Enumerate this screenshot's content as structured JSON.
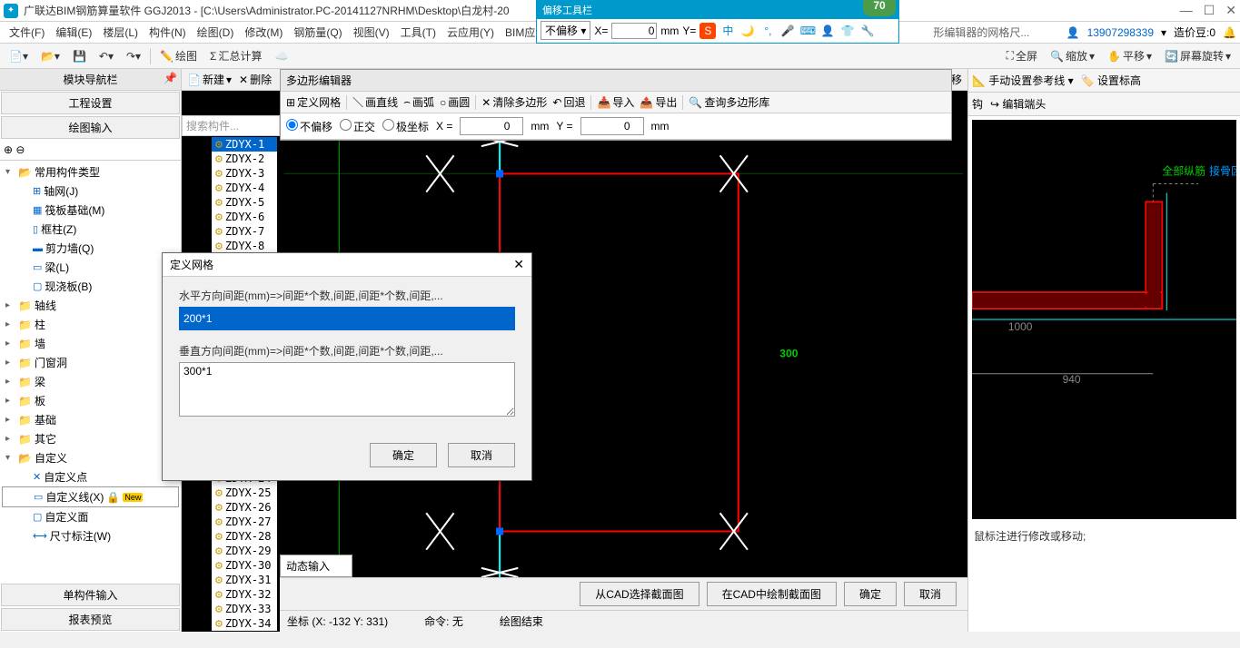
{
  "title": "广联达BIM钢筋算量软件 GGJ2013 - [C:\\Users\\Administrator.PC-20141127NRHM\\Desktop\\白龙村-20",
  "score": "70",
  "floatbar": {
    "title": "偏移工具栏",
    "dropdown": "不偏移",
    "x_label": "X=",
    "x_val": "0",
    "unit": "mm",
    "y_label": "Y="
  },
  "hint_text": "形编辑器的网格尺...",
  "menubar": [
    "文件(F)",
    "编辑(E)",
    "楼层(L)",
    "构件(N)",
    "绘图(D)",
    "修改(M)",
    "钢筋量(Q)",
    "视图(V)",
    "工具(T)",
    "云应用(Y)",
    "BIM应用"
  ],
  "user": "13907298339",
  "credit_label": "造价豆:0",
  "toolbar1": {
    "draw": "绘图",
    "sum": "汇总计算",
    "right": [
      "全屏",
      "缩放",
      "平移",
      "屏幕旋转"
    ]
  },
  "nav": {
    "header": "模块导航栏",
    "sec1": "工程设置",
    "sec2": "绘图输入",
    "bottom1": "单构件输入",
    "bottom2": "报表预览"
  },
  "tree": {
    "root": "常用构件类型",
    "items": [
      "轴网(J)",
      "筏板基础(M)",
      "框柱(Z)",
      "剪力墙(Q)",
      "梁(L)",
      "现浇板(B)"
    ],
    "cats": [
      "轴线",
      "柱",
      "墙",
      "门窗洞",
      "梁",
      "板",
      "基础",
      "其它",
      "自定义"
    ],
    "custom": [
      "自定义点",
      "自定义线(X)",
      "自定义面",
      "尺寸标注(W)"
    ],
    "new_badge": "New"
  },
  "center_tb": {
    "new": "新建",
    "del": "删除",
    "shift": "下移"
  },
  "poly": {
    "title": "多边形编辑器",
    "tb": [
      "定义网格",
      "画直线",
      "画弧",
      "画圆",
      "清除多边形",
      "回退",
      "导入",
      "导出",
      "查询多边形库"
    ],
    "opt": {
      "r1": "不偏移",
      "r2": "正交",
      "r3": "极坐标",
      "x": "X =",
      "xval": "0",
      "y": "Y =",
      "yval": "0",
      "unit": "mm"
    }
  },
  "search_placeholder": "搜索构件...",
  "list_prefix": "ZDYX-",
  "canvas": {
    "dim": "300"
  },
  "dialog": {
    "title": "定义网格",
    "lbl1": "水平方向间距(mm)=>间距*个数,间距,间距*个数,间距,...",
    "val1": "200*1",
    "lbl2": "垂直方向间距(mm)=>间距*个数,间距,间距*个数,间距,...",
    "val2": "300*1",
    "ok": "确定",
    "cancel": "取消"
  },
  "dynamic": "动态输入",
  "bottom": {
    "b1": "从CAD选择截面图",
    "b2": "在CAD中绘制截面图",
    "ok": "确定",
    "cancel": "取消"
  },
  "status": {
    "coord": "坐标 (X: -132 Y: 331)",
    "cmd": "命令: 无",
    "draw": "绘图结束"
  },
  "right": {
    "tb1": "手动设置参考线",
    "tb2": "设置标高",
    "tb3": "钩",
    "tb4": "编辑端头",
    "hint": "鼠标注进行修改或移动;",
    "label_all": "全部纵筋",
    "label_x": "接骨区",
    "d1": "940",
    "d2": "1000"
  }
}
